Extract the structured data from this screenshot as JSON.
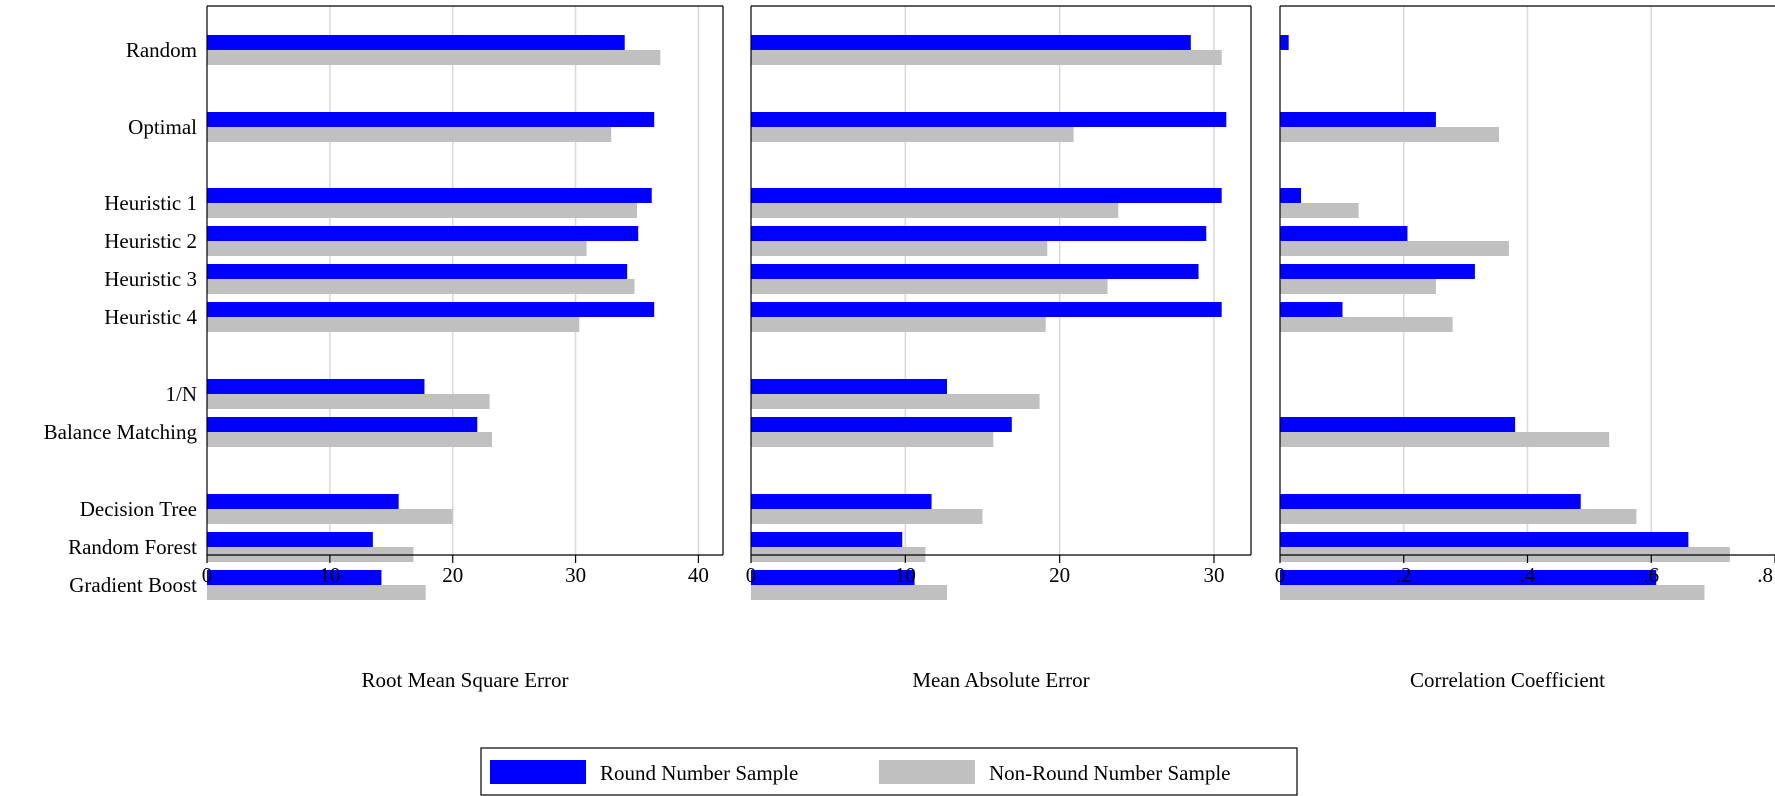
{
  "chart_data": {
    "type": "bar",
    "orientation": "horizontal",
    "categories": [
      "Random",
      "Optimal",
      "Heuristic 1",
      "Heuristic 2",
      "Heuristic 3",
      "Heuristic 4",
      "1/N",
      "Balance Matching",
      "Decision Tree",
      "Random Forest",
      "Gradient Boost"
    ],
    "series_names": [
      "Round Number Sample",
      "Non-Round Number Sample"
    ],
    "series_colors": [
      "#0000ff",
      "#c0c0c0"
    ],
    "grid": true,
    "legend_position": "bottom",
    "panels": [
      {
        "xlabel": "Root Mean Square Error",
        "xlim": [
          0,
          42
        ],
        "ticks": [
          0,
          10,
          20,
          30,
          40
        ],
        "tick_labels": [
          "0",
          "10",
          "20",
          "30",
          "40"
        ],
        "series": [
          {
            "name": "Round Number Sample",
            "values": [
              34.0,
              36.4,
              36.2,
              35.1,
              34.2,
              36.4,
              17.7,
              22.0,
              15.6,
              13.5,
              14.2
            ]
          },
          {
            "name": "Non-Round Number Sample",
            "values": [
              36.9,
              32.9,
              35.0,
              30.9,
              34.8,
              30.3,
              23.0,
              23.2,
              20.0,
              16.8,
              17.8
            ]
          }
        ]
      },
      {
        "xlabel": "Mean Absolute Error",
        "xlim": [
          0,
          32.4
        ],
        "ticks": [
          0,
          10,
          20,
          30
        ],
        "tick_labels": [
          "0",
          "10",
          "20",
          "30"
        ],
        "series": [
          {
            "name": "Round Number Sample",
            "values": [
              28.5,
              30.8,
              30.5,
              29.5,
              29.0,
              30.5,
              12.7,
              16.9,
              11.7,
              9.8,
              10.6
            ]
          },
          {
            "name": "Non-Round Number Sample",
            "values": [
              30.5,
              20.9,
              23.8,
              19.2,
              23.1,
              19.1,
              18.7,
              15.7,
              15.0,
              11.3,
              12.7
            ]
          }
        ]
      },
      {
        "xlabel": "Correlation Coefficient",
        "xlim": [
          0,
          0.8
        ],
        "ticks": [
          0,
          0.2,
          0.4,
          0.6,
          0.8
        ],
        "tick_labels": [
          "0",
          ".2",
          ".4",
          ".6",
          ".8"
        ],
        "series": [
          {
            "name": "Round Number Sample",
            "values": [
              0.014,
              0.252,
              0.034,
              0.206,
              0.315,
              0.101,
              null,
              0.38,
              0.486,
              0.66,
              0.608
            ]
          },
          {
            "name": "Non-Round Number Sample",
            "values": [
              null,
              0.354,
              0.127,
              0.37,
              0.252,
              0.279,
              null,
              0.532,
              0.576,
              0.727,
              0.686
            ]
          }
        ]
      }
    ]
  }
}
